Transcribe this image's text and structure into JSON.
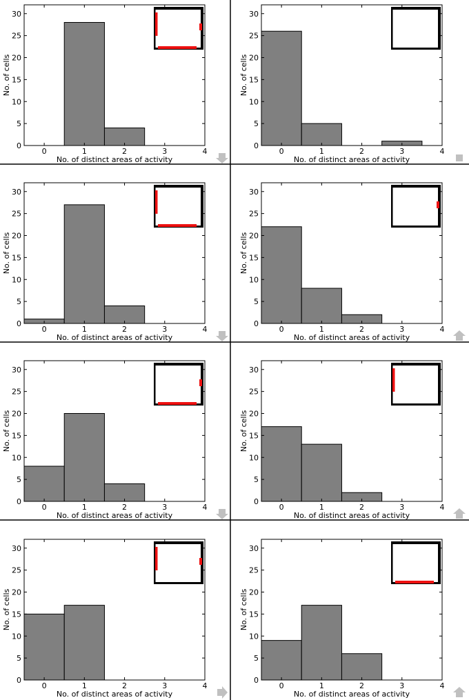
{
  "figure": {
    "x_tick_labels": [
      "0",
      "1",
      "2",
      "3",
      "4"
    ],
    "y_tick_labels": [
      "0",
      "5",
      "10",
      "15",
      "20",
      "25",
      "30"
    ],
    "xlabel": "No. of distinct areas of activity",
    "ylabel": "No. of cells",
    "colors": {
      "bar_fill": "#808080",
      "bar_edge": "#000000",
      "inset_wall": "#000000",
      "inset_highlight": "#ee1111",
      "arrow": "#c0c0c0",
      "divider": "#000000"
    }
  },
  "chart_data": [
    {
      "type": "bar",
      "categories": [
        0,
        1,
        2,
        3
      ],
      "values": [
        0,
        28,
        4,
        0
      ],
      "xlabel": "No. of distinct areas of activity",
      "ylabel": "No. of cells",
      "xlim": [
        -0.5,
        4
      ],
      "ylim": [
        0,
        32
      ],
      "inset": {
        "highlights": [
          "left-wall-upper",
          "right-wall-upper",
          "bottom-wall"
        ]
      },
      "corner_icon": "arrow-down-icon"
    },
    {
      "type": "bar",
      "categories": [
        0,
        1,
        2,
        3
      ],
      "values": [
        26,
        5,
        0,
        1
      ],
      "xlabel": "No. of distinct areas of activity",
      "ylabel": "No. of cells",
      "xlim": [
        -0.5,
        4
      ],
      "ylim": [
        0,
        32
      ],
      "inset": {
        "highlights": []
      },
      "corner_icon": "square-icon"
    },
    {
      "type": "bar",
      "categories": [
        0,
        1,
        2,
        3
      ],
      "values": [
        1,
        27,
        4,
        0
      ],
      "xlabel": "No. of distinct areas of activity",
      "ylabel": "No. of cells",
      "xlim": [
        -0.5,
        4
      ],
      "ylim": [
        0,
        32
      ],
      "inset": {
        "highlights": [
          "left-wall-upper",
          "bottom-wall"
        ]
      },
      "corner_icon": "arrow-down-icon"
    },
    {
      "type": "bar",
      "categories": [
        0,
        1,
        2,
        3
      ],
      "values": [
        22,
        8,
        2,
        0
      ],
      "xlabel": "No. of distinct areas of activity",
      "ylabel": "No. of cells",
      "xlim": [
        -0.5,
        4
      ],
      "ylim": [
        0,
        32
      ],
      "inset": {
        "highlights": [
          "right-wall-upper"
        ]
      },
      "corner_icon": "arrow-up-icon"
    },
    {
      "type": "bar",
      "categories": [
        0,
        1,
        2,
        3
      ],
      "values": [
        8,
        20,
        4,
        0
      ],
      "xlabel": "No. of distinct areas of activity",
      "ylabel": "No. of cells",
      "xlim": [
        -0.5,
        4
      ],
      "ylim": [
        0,
        32
      ],
      "inset": {
        "highlights": [
          "right-wall-upper",
          "bottom-wall"
        ]
      },
      "corner_icon": "arrow-down-icon"
    },
    {
      "type": "bar",
      "categories": [
        0,
        1,
        2,
        3
      ],
      "values": [
        17,
        13,
        2,
        0
      ],
      "xlabel": "No. of distinct areas of activity",
      "ylabel": "No. of cells",
      "xlim": [
        -0.5,
        4
      ],
      "ylim": [
        0,
        32
      ],
      "inset": {
        "highlights": [
          "left-wall-upper"
        ]
      },
      "corner_icon": "arrow-up-icon"
    },
    {
      "type": "bar",
      "categories": [
        0,
        1,
        2,
        3
      ],
      "values": [
        15,
        17,
        0,
        0
      ],
      "xlabel": "No. of distinct areas of activity",
      "ylabel": "No. of cells",
      "xlim": [
        -0.5,
        4
      ],
      "ylim": [
        0,
        32
      ],
      "inset": {
        "highlights": [
          "left-wall-upper",
          "right-wall-upper"
        ]
      },
      "corner_icon": "arrow-right-icon"
    },
    {
      "type": "bar",
      "categories": [
        0,
        1,
        2,
        3
      ],
      "values": [
        9,
        17,
        6,
        0
      ],
      "xlabel": "No. of distinct areas of activity",
      "ylabel": "No. of cells",
      "xlim": [
        -0.5,
        4
      ],
      "ylim": [
        0,
        32
      ],
      "inset": {
        "highlights": [
          "bottom-wall"
        ]
      },
      "corner_icon": "arrow-up-icon"
    }
  ]
}
